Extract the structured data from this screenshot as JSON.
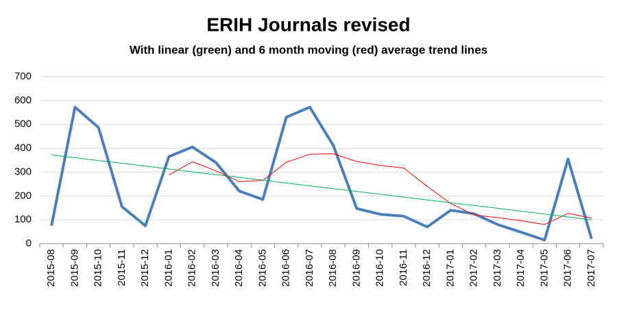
{
  "chart_data": {
    "type": "line",
    "title": "ERIH Journals revised",
    "subtitle": "With linear (green) and 6 month moving (red) average trend lines",
    "categories": [
      "2015-08",
      "2015-09",
      "2015-10",
      "2015-11",
      "2015-12",
      "2016-01",
      "2016-02",
      "2016-03",
      "2016-04",
      "2016-05",
      "2016-06",
      "2016-07",
      "2016-08",
      "2016-09",
      "2016-10",
      "2016-11",
      "2016-12",
      "2017-01",
      "2017-02",
      "2017-03",
      "2017-04",
      "2017-05",
      "2017-06",
      "2017-07"
    ],
    "series": [
      {
        "color": "#4a7ebb",
        "width": 4,
        "values": [
          75,
          572,
          487,
          155,
          75,
          365,
          405,
          340,
          220,
          185,
          530,
          572,
          412,
          147,
          123,
          115,
          70,
          140,
          125,
          80,
          48,
          15,
          355,
          20
        ]
      },
      {
        "color": "#ff0000",
        "width": 1,
        "values": [
          null,
          null,
          null,
          null,
          null,
          288,
          343,
          305,
          260,
          265,
          341,
          375,
          377,
          344,
          328,
          317,
          240,
          168,
          120,
          109,
          96,
          80,
          127,
          107
        ]
      },
      {
        "color": "#00b050",
        "width": 1,
        "values": [
          372,
          360,
          348,
          337,
          325,
          313,
          301,
          289,
          278,
          266,
          254,
          242,
          230,
          219,
          207,
          195,
          183,
          171,
          160,
          148,
          136,
          124,
          112,
          100
        ]
      }
    ],
    "ylim": [
      0,
      700
    ],
    "yticks": [
      0,
      100,
      200,
      300,
      400,
      500,
      600,
      700
    ],
    "grid": true
  }
}
